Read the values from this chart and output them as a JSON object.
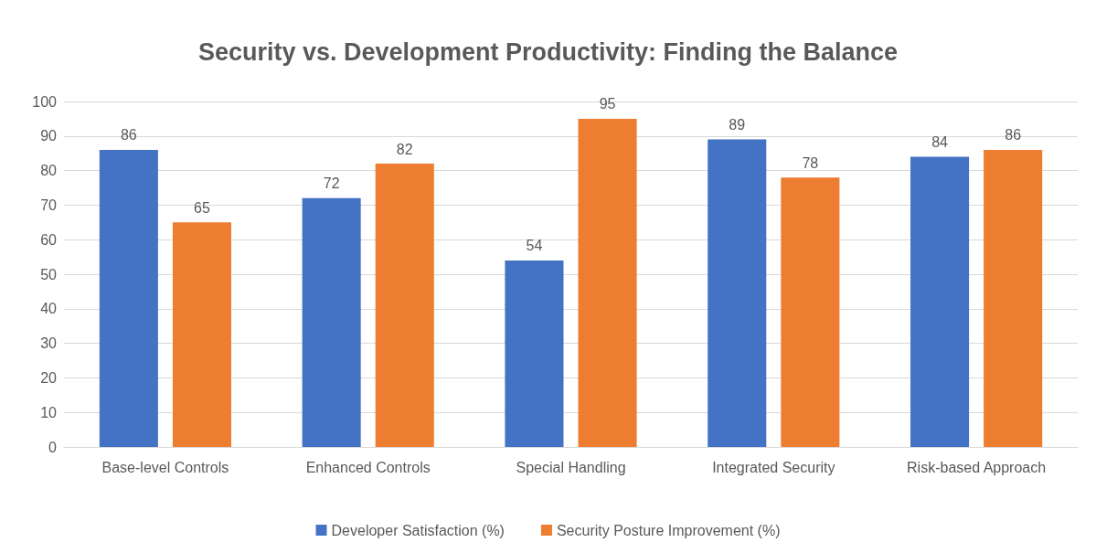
{
  "chart_data": {
    "type": "bar",
    "title": "Security vs. Development Productivity: Finding the Balance",
    "categories": [
      "Base-level Controls",
      "Enhanced Controls",
      "Special Handling",
      "Integrated Security",
      "Risk-based Approach"
    ],
    "series": [
      {
        "name": "Developer Satisfaction (%)",
        "color": "#4472c4",
        "values": [
          86,
          72,
          54,
          89,
          84
        ]
      },
      {
        "name": "Security Posture Improvement (%)",
        "color": "#ed7d31",
        "values": [
          65,
          82,
          95,
          78,
          86
        ]
      }
    ],
    "ylim": [
      0,
      100
    ],
    "yticks": [
      0,
      10,
      20,
      30,
      40,
      50,
      60,
      70,
      80,
      90,
      100
    ],
    "grid": "y",
    "legend": "bottom",
    "data_labels": true
  }
}
